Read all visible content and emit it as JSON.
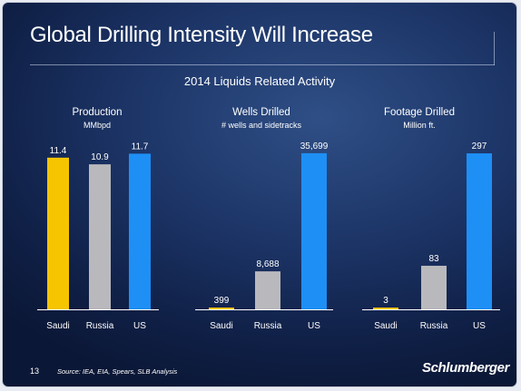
{
  "slide": {
    "title": "Global Drilling Intensity Will Increase",
    "subtitle": "2014 Liquids Related Activity",
    "page_number": "13",
    "source": "Source:    IEA, EIA, Spears, SLB Analysis",
    "logo_text": "Schlumberger"
  },
  "colors": {
    "saudi": "#f6c500",
    "russia": "#b9b9bd",
    "us": "#1e8ff5",
    "axis": "#ffffff",
    "text": "#ffffff"
  },
  "chart_data": [
    {
      "type": "bar",
      "title": "Production",
      "subtitle": "MMbpd",
      "categories": [
        "Saudi",
        "Russia",
        "US"
      ],
      "values": [
        11.4,
        10.9,
        11.7
      ],
      "value_labels": [
        "11.4",
        "10.9",
        "11.7"
      ],
      "ylim": [
        0,
        12
      ]
    },
    {
      "type": "bar",
      "title": "Wells Drilled",
      "subtitle": "# wells and sidetracks",
      "categories": [
        "Saudi",
        "Russia",
        "US"
      ],
      "values": [
        399,
        8688,
        35699
      ],
      "value_labels": [
        "399",
        "8,688",
        "35,699"
      ],
      "ylim": [
        0,
        36500
      ]
    },
    {
      "type": "bar",
      "title": "Footage Drilled",
      "subtitle": "Million ft.",
      "categories": [
        "Saudi",
        "Russia",
        "US"
      ],
      "values": [
        3,
        83,
        297
      ],
      "value_labels": [
        "3",
        "83",
        "297"
      ],
      "ylim": [
        0,
        304
      ]
    }
  ]
}
